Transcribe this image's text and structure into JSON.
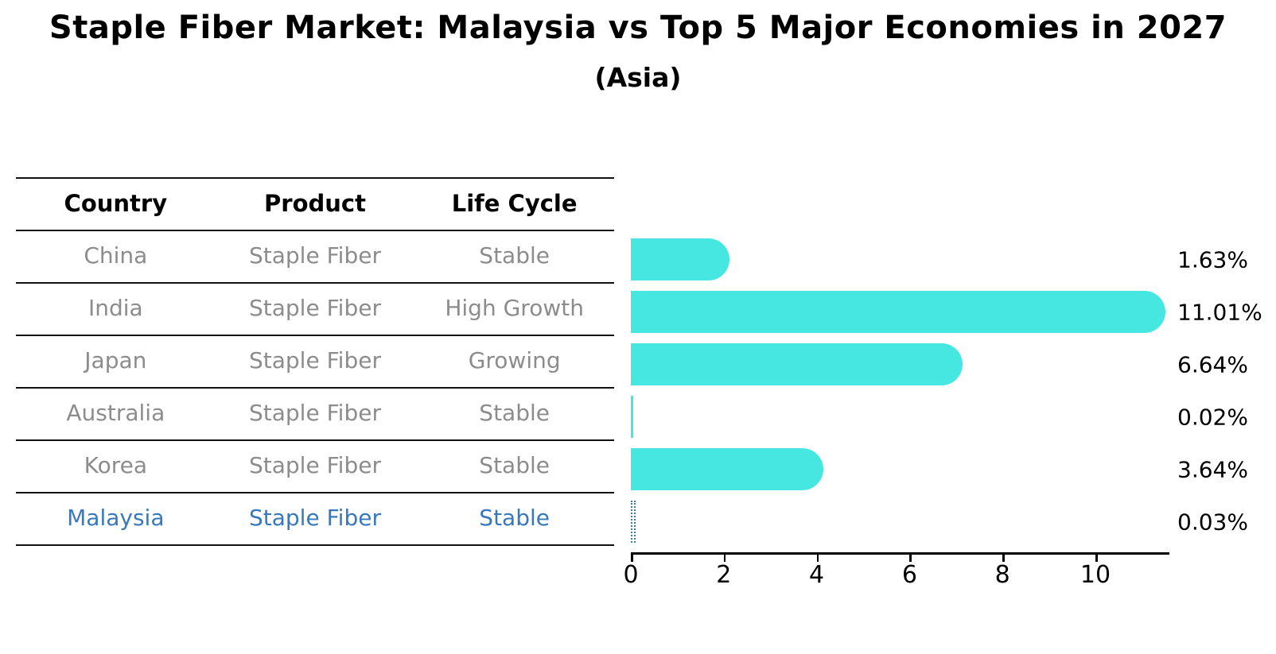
{
  "title": "Staple Fiber Market: Malaysia vs Top 5 Major Economies in 2027",
  "subtitle": "(Asia)",
  "colors": {
    "bar": "#46e6e1",
    "highlight": "#3878bd",
    "row_text": "#8c8c8c",
    "header_text": "#000000",
    "line": "#111111"
  },
  "table": {
    "headers": [
      "Country",
      "Product",
      "Life Cycle"
    ],
    "rows": [
      {
        "country": "China",
        "product": "Staple Fiber",
        "life_cycle": "Stable",
        "highlight": false
      },
      {
        "country": "India",
        "product": "Staple Fiber",
        "life_cycle": "High Growth",
        "highlight": false
      },
      {
        "country": "Japan",
        "product": "Staple Fiber",
        "life_cycle": "Growing",
        "highlight": false
      },
      {
        "country": "Australia",
        "product": "Staple Fiber",
        "life_cycle": "Stable",
        "highlight": false
      },
      {
        "country": "Korea",
        "product": "Staple Fiber",
        "life_cycle": "Stable",
        "highlight": false
      },
      {
        "country": "Malaysia",
        "product": "Staple Fiber",
        "life_cycle": "Stable",
        "highlight": true
      }
    ]
  },
  "chart_data": {
    "type": "bar",
    "orientation": "horizontal",
    "title": "Staple Fiber Market: Malaysia vs Top 5 Major Economies in 2027",
    "subtitle": "(Asia)",
    "categories": [
      "China",
      "India",
      "Japan",
      "Australia",
      "Korea",
      "Malaysia"
    ],
    "values": [
      1.63,
      11.01,
      6.64,
      0.02,
      3.64,
      0.03
    ],
    "labels": [
      "1.63%",
      "11.01%",
      "6.64%",
      "0.02%",
      "3.64%",
      "0.03%"
    ],
    "highlight_index": 5,
    "x_ticks": [
      "0",
      "2",
      "4",
      "6",
      "8",
      "10"
    ],
    "xlim": [
      0,
      11.6
    ],
    "xlabel": "",
    "ylabel": "",
    "grid": false,
    "legend": false,
    "bar_color": "#46e6e1",
    "highlight_color": "#3878bd"
  }
}
